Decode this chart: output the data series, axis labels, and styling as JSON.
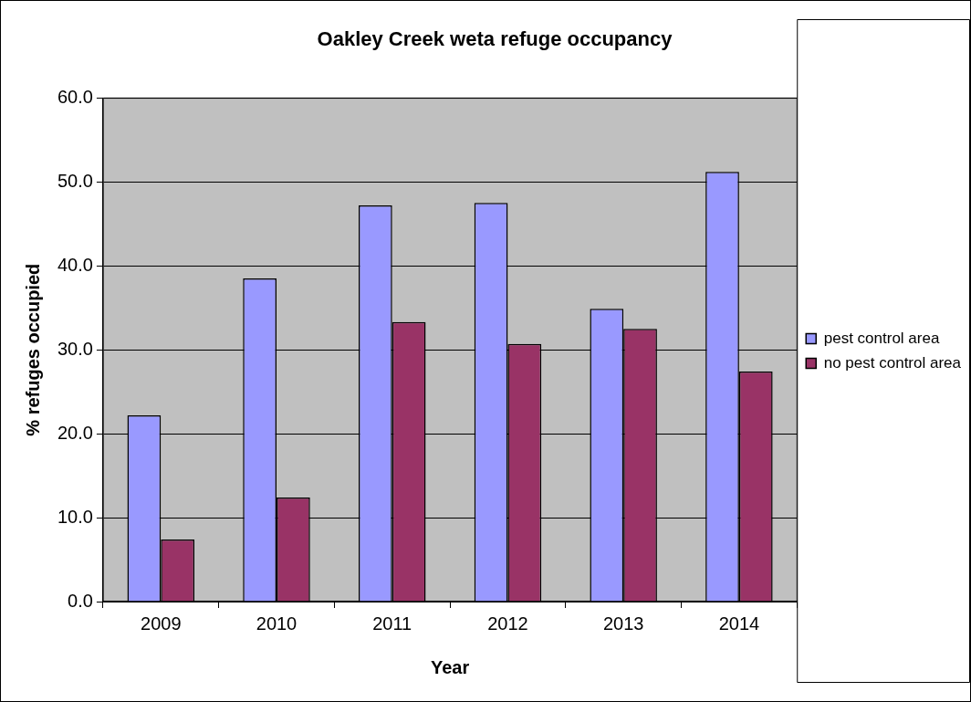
{
  "chart_data": {
    "type": "bar",
    "title": "Oakley Creek weta refuge occupancy",
    "xlabel": "Year",
    "ylabel": "% refuges occupied",
    "categories": [
      "2009",
      "2010",
      "2011",
      "2012",
      "2013",
      "2014"
    ],
    "series": [
      {
        "name": "pest control area",
        "color": "#9999ff",
        "values": [
          22.2,
          38.5,
          47.2,
          47.5,
          34.9,
          51.2
        ]
      },
      {
        "name": "no pest control area",
        "color": "#993366",
        "values": [
          7.4,
          12.4,
          33.3,
          30.7,
          32.5,
          27.4
        ]
      }
    ],
    "ylim": [
      0,
      60
    ],
    "yticks": [
      {
        "value": 0,
        "label": "0.0"
      },
      {
        "value": 10,
        "label": "10.0"
      },
      {
        "value": 20,
        "label": "20.0"
      },
      {
        "value": 30,
        "label": "30.0"
      },
      {
        "value": 40,
        "label": "40.0"
      },
      {
        "value": 50,
        "label": "50.0"
      },
      {
        "value": 60,
        "label": "60.0"
      }
    ],
    "grid": "y",
    "legend": "right"
  }
}
